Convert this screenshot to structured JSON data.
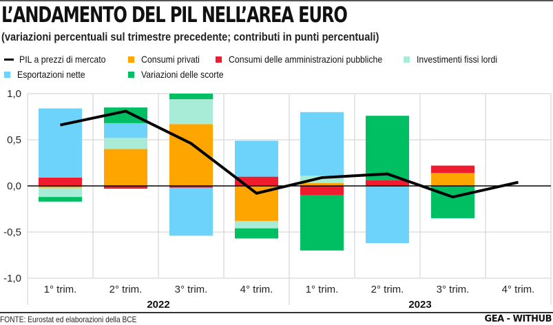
{
  "header": {
    "title": "L’ANDAMENTO DEL PIL NELL’AREA EURO",
    "subtitle": "(variazioni percentuali sul trimestre precedente; contributi in punti percentuali)"
  },
  "legend": [
    {
      "key": "pil",
      "label": "PIL a prezzi di mercato",
      "type": "line",
      "color": "#000000"
    },
    {
      "key": "consumi_privati",
      "label": "Consumi privati",
      "type": "box",
      "color": "#FFA500"
    },
    {
      "key": "consumi_pa",
      "label": "Consumi delle amministrazioni pubbliche",
      "type": "box",
      "color": "#EE1C2E"
    },
    {
      "key": "investimenti",
      "label": "Investimenti fissi lordi",
      "type": "box",
      "color": "#A8EBD6"
    },
    {
      "key": "esportazioni",
      "label": "Esportazioni nette",
      "type": "box",
      "color": "#6DD3FB"
    },
    {
      "key": "scorte",
      "label": "Variazioni delle scorte",
      "type": "box",
      "color": "#00BF63"
    }
  ],
  "footer": {
    "source": "FONTE: Eurostat ed elaborazioni della BCE",
    "brand": "GEA - WITHUB"
  },
  "chart_data": {
    "type": "bar",
    "stacked": true,
    "title": "L’ANDAMENTO DEL PIL NELL’AREA EURO",
    "subtitle": "(variazioni percentuali sul trimestre precedente; contributi in punti percentuali)",
    "xlabel": "",
    "ylabel": "",
    "ylim": [
      -1.0,
      1.0
    ],
    "yticks": [
      1.0,
      0.5,
      0.0,
      -0.5,
      -1.0
    ],
    "ytick_labels": [
      "1,0",
      "0,5",
      "0,0",
      "-0,5",
      "-1,0"
    ],
    "grid": true,
    "legend_position": "top",
    "categories": [
      "1° trim.",
      "2° trim.",
      "3° trim.",
      "4° trim.",
      "1° trim.",
      "2° trim.",
      "3° trim.",
      "4° trim."
    ],
    "groups": [
      {
        "label": "2022",
        "span": 4
      },
      {
        "label": "2023",
        "span": 4
      }
    ],
    "series": [
      {
        "key": "consumi_privati",
        "name": "Consumi privati",
        "color": "#FFA500",
        "values": [
          -0.02,
          0.4,
          0.67,
          -0.38,
          0.03,
          0.0,
          0.14,
          null
        ]
      },
      {
        "key": "consumi_pa",
        "name": "Consumi delle amministrazioni pubbliche",
        "color": "#EE1C2E",
        "values": [
          0.09,
          -0.03,
          -0.02,
          0.1,
          -0.1,
          0.06,
          0.08,
          null
        ]
      },
      {
        "key": "investimenti",
        "name": "Investimenti fissi lordi",
        "color": "#A8EBD6",
        "values": [
          -0.1,
          0.12,
          0.27,
          -0.08,
          0.08,
          0.0,
          0.0,
          null
        ]
      },
      {
        "key": "esportazioni",
        "name": "Esportazioni nette",
        "color": "#6DD3FB",
        "values": [
          0.75,
          0.16,
          -0.52,
          0.39,
          0.69,
          -0.62,
          0.0,
          null
        ]
      },
      {
        "key": "scorte",
        "name": "Variazioni delle scorte",
        "color": "#00BF63",
        "values": [
          -0.05,
          0.17,
          0.06,
          -0.11,
          -0.6,
          0.7,
          -0.35,
          null
        ]
      }
    ],
    "line": {
      "key": "pil",
      "name": "PIL a prezzi di mercato",
      "color": "#000000",
      "values": [
        0.66,
        0.81,
        0.46,
        -0.08,
        0.09,
        0.13,
        -0.12,
        0.04
      ]
    }
  }
}
